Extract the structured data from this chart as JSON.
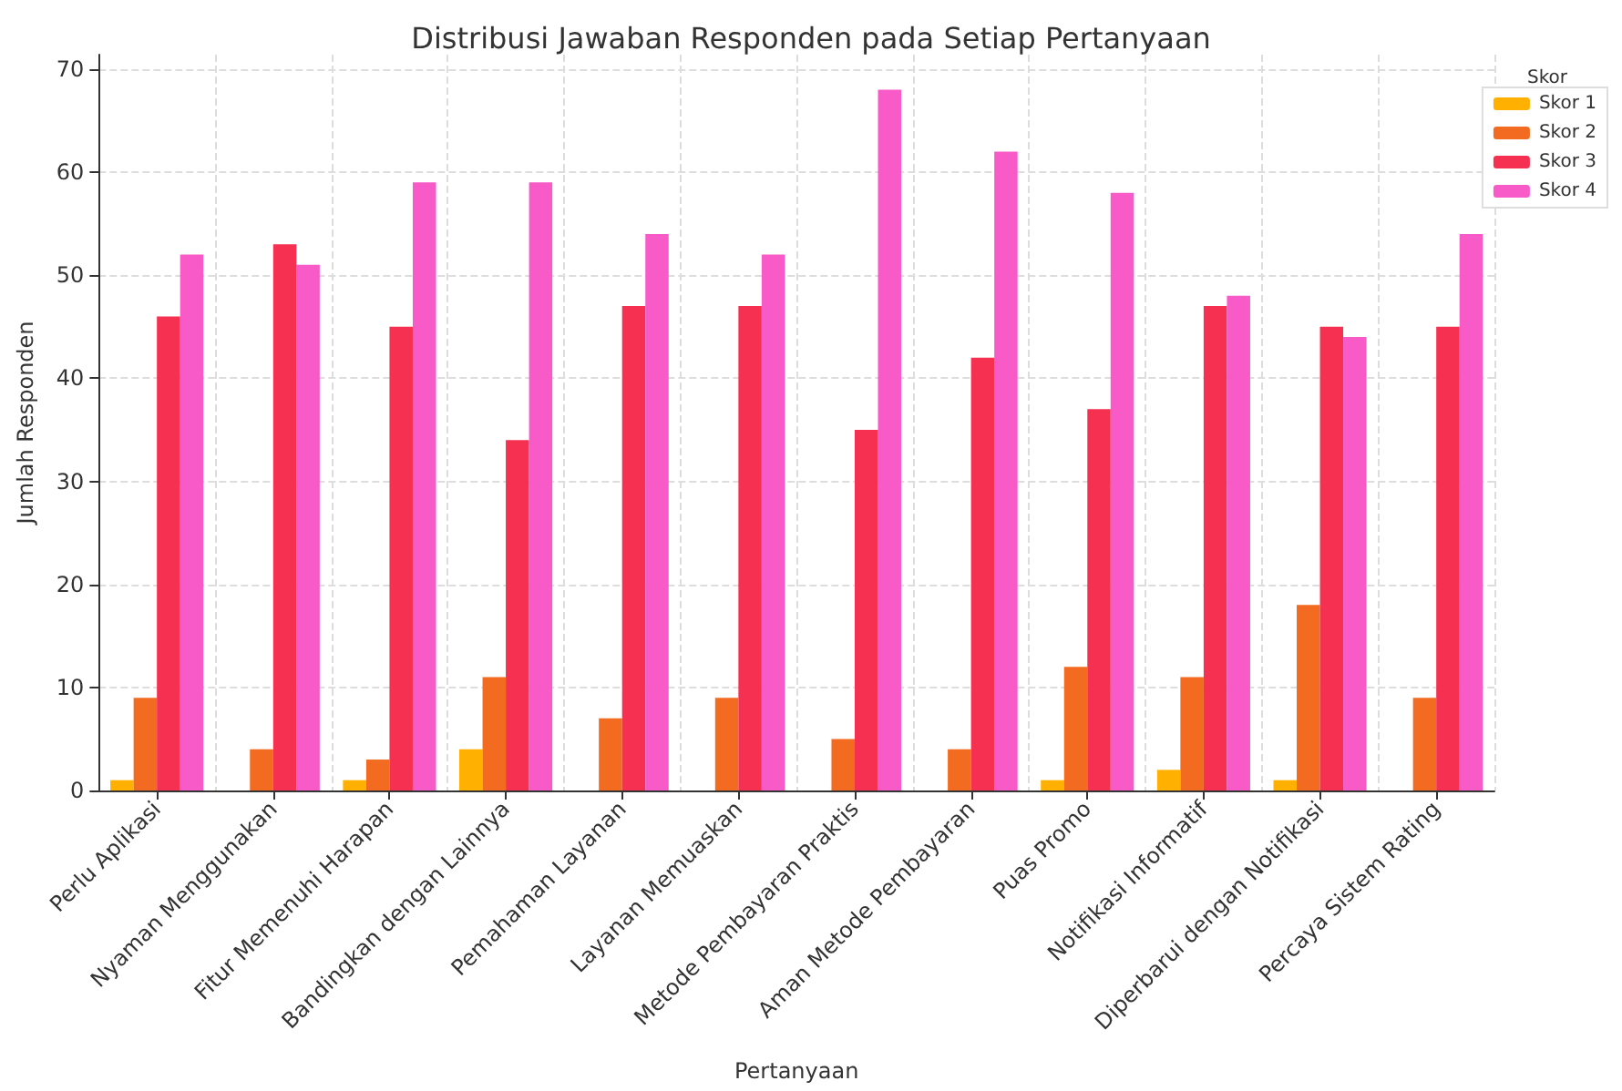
{
  "chart_data": {
    "type": "bar",
    "title": "Distribusi Jawaban Responden pada Setiap Pertanyaan",
    "xlabel": "Pertanyaan",
    "ylabel": "Jumlah Responden",
    "legend_title": "Skor",
    "categories": [
      "Perlu Aplikasi",
      "Nyaman Menggunakan",
      "Fitur Memenuhi Harapan",
      "Bandingkan dengan Lainnya",
      "Pemahaman Layanan",
      "Layanan Memuaskan",
      "Metode Pembayaran Praktis",
      "Aman Metode Pembayaran",
      "Puas Promo",
      "Notifikasi Informatif",
      "Diperbarui dengan Notifikasi",
      "Percaya Sistem Rating"
    ],
    "series": [
      {
        "name": "Skor 1",
        "color": "#ffb000",
        "values": [
          1,
          0,
          1,
          4,
          0,
          0,
          0,
          0,
          1,
          2,
          1,
          0
        ]
      },
      {
        "name": "Skor 2",
        "color": "#f26b20",
        "values": [
          9,
          4,
          3,
          11,
          7,
          9,
          5,
          4,
          12,
          11,
          18,
          9
        ]
      },
      {
        "name": "Skor 3",
        "color": "#f53050",
        "values": [
          46,
          53,
          45,
          34,
          47,
          47,
          35,
          42,
          37,
          47,
          45,
          45
        ]
      },
      {
        "name": "Skor 4",
        "color": "#f85ac8",
        "values": [
          52,
          51,
          59,
          59,
          54,
          52,
          68,
          62,
          58,
          48,
          44,
          54
        ]
      }
    ],
    "ylim": [
      0,
      71.4
    ],
    "yticks": [
      0,
      10,
      20,
      30,
      40,
      50,
      60,
      70
    ],
    "grid": true,
    "legend": "top right"
  }
}
